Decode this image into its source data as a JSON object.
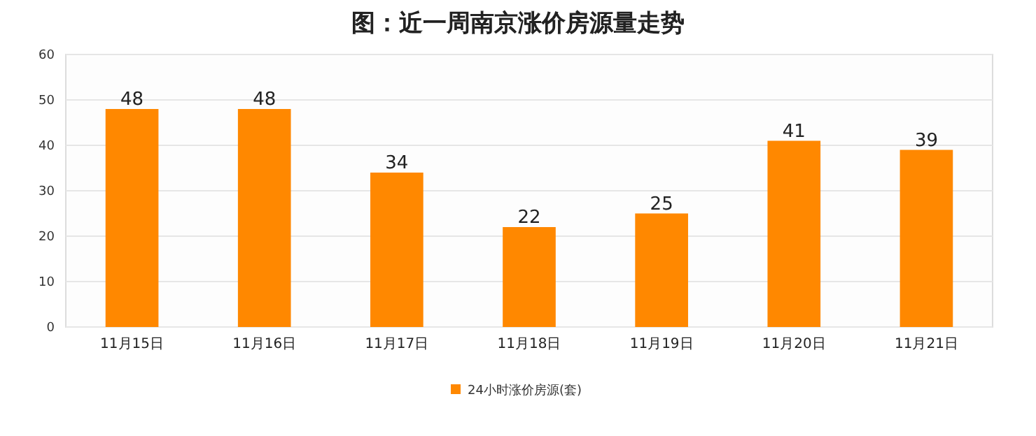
{
  "chart_data": {
    "type": "bar",
    "title": "图：近一周南京涨价房源量走势",
    "categories": [
      "11月15日",
      "11月16日",
      "11月17日",
      "11月18日",
      "11月19日",
      "11月20日",
      "11月21日"
    ],
    "series": [
      {
        "name": "24小时涨价房源(套)",
        "color": "#ff8800",
        "values": [
          48,
          48,
          34,
          22,
          25,
          41,
          39
        ]
      }
    ],
    "ylim": [
      0,
      60
    ],
    "yticks": [
      0,
      10,
      20,
      30,
      40,
      50,
      60
    ],
    "grid": "y",
    "legend": "bottom",
    "data_labels": true
  }
}
